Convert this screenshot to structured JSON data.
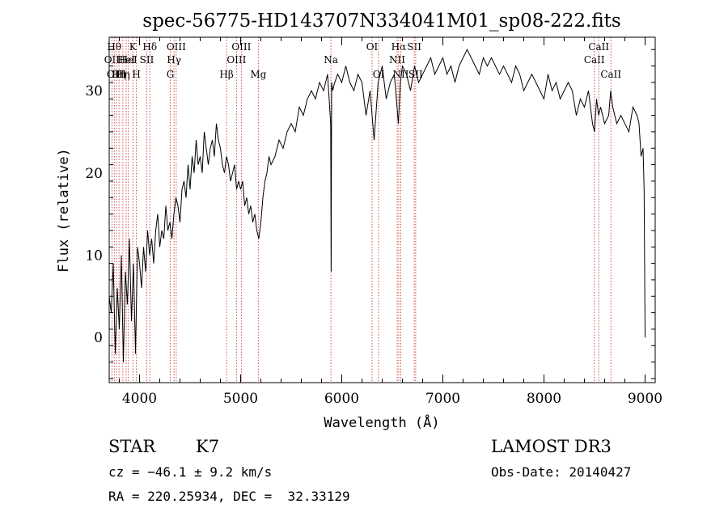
{
  "chart_data": {
    "type": "line",
    "title": "spec-56775-HD143707N334041M01_sp08-222.fits",
    "xlabel": "Wavelength (Å)",
    "ylabel": "Flux (relative)",
    "xlim": [
      3700,
      9100
    ],
    "ylim": [
      -5.5,
      36.5
    ],
    "xticks": [
      4000,
      5000,
      6000,
      7000,
      8000,
      9000
    ],
    "yticks": [
      0,
      10,
      20,
      30
    ],
    "grid": false,
    "series": [
      {
        "x": [
          3700,
          3720,
          3740,
          3760,
          3780,
          3800,
          3820,
          3840,
          3860,
          3880,
          3900,
          3920,
          3940,
          3960,
          3980,
          4000,
          4020,
          4040,
          4060,
          4080,
          4100,
          4120,
          4140,
          4160,
          4180,
          4200,
          4220,
          4240,
          4260,
          4280,
          4300,
          4320,
          4340,
          4360,
          4380,
          4400,
          4420,
          4440,
          4460,
          4480,
          4500,
          4520,
          4540,
          4560,
          4580,
          4600,
          4620,
          4640,
          4660,
          4680,
          4700,
          4720,
          4740,
          4760,
          4780,
          4800,
          4820,
          4840,
          4860,
          4880,
          4900,
          4920,
          4940,
          4960,
          4980,
          5000,
          5020,
          5040,
          5060,
          5080,
          5100,
          5120,
          5140,
          5160,
          5180,
          5200,
          5220,
          5240,
          5260,
          5280,
          5300,
          5340,
          5380,
          5420,
          5460,
          5500,
          5540,
          5580,
          5620,
          5660,
          5700,
          5740,
          5780,
          5820,
          5860,
          5890,
          5895,
          5900,
          5910,
          5930,
          5960,
          6000,
          6040,
          6080,
          6120,
          6160,
          6200,
          6240,
          6280,
          6320,
          6360,
          6400,
          6440,
          6480,
          6520,
          6560,
          6580,
          6600,
          6640,
          6680,
          6720,
          6760,
          6800,
          6840,
          6880,
          6920,
          6960,
          7000,
          7040,
          7080,
          7120,
          7160,
          7200,
          7240,
          7280,
          7320,
          7360,
          7400,
          7440,
          7480,
          7520,
          7560,
          7600,
          7640,
          7680,
          7720,
          7760,
          7800,
          7840,
          7880,
          7920,
          7960,
          8000,
          8040,
          8080,
          8120,
          8160,
          8200,
          8240,
          8280,
          8320,
          8360,
          8400,
          8440,
          8480,
          8500,
          8520,
          8540,
          8560,
          8600,
          8640,
          8660,
          8680,
          8720,
          8760,
          8800,
          8840,
          8880,
          8920,
          8940,
          8960,
          8980,
          8990,
          9000
        ],
        "values": [
          5,
          3,
          9,
          -2,
          6,
          1,
          10,
          -3,
          8,
          4,
          12,
          2,
          9,
          -2,
          11,
          9,
          6,
          11,
          8,
          13,
          10,
          12,
          9,
          13,
          15,
          11,
          13,
          12,
          16,
          13,
          14,
          12,
          15,
          17,
          16,
          14,
          18,
          19,
          17,
          21,
          18,
          22,
          20,
          24,
          21,
          22,
          20,
          25,
          23,
          21,
          23,
          24,
          22,
          26,
          24,
          23,
          21,
          20,
          22,
          21,
          19,
          20,
          21,
          18,
          19,
          18,
          19,
          16,
          17,
          15,
          16,
          14,
          15,
          13,
          12,
          14,
          17,
          19,
          20,
          22,
          21,
          22,
          24,
          23,
          25,
          26,
          25,
          28,
          27,
          29,
          30,
          29,
          31,
          30,
          32,
          26,
          8,
          31,
          30,
          31,
          32,
          31,
          33,
          31,
          30,
          32,
          31,
          27,
          30,
          24,
          31,
          33,
          29,
          31,
          32,
          26,
          31,
          33,
          32,
          30,
          33,
          31,
          32,
          33,
          34,
          32,
          33,
          34,
          32,
          33,
          31,
          33,
          34,
          35,
          34,
          33,
          32,
          34,
          33,
          34,
          33,
          32,
          33,
          32,
          31,
          33,
          32,
          30,
          31,
          32,
          31,
          30,
          29,
          32,
          30,
          31,
          29,
          30,
          31,
          30,
          27,
          29,
          28,
          30,
          26,
          25,
          29,
          27,
          28,
          26,
          27,
          30,
          28,
          26,
          27,
          26,
          25,
          28,
          27,
          26,
          22,
          23,
          18,
          0
        ]
      }
    ],
    "line_markers": [
      {
        "wavelength": 3727,
        "label": "OII",
        "row": 1
      },
      {
        "wavelength": 3750,
        "label": "Hθ",
        "row": 0
      },
      {
        "wavelength": 3771,
        "label": "OIII",
        "row": 2
      },
      {
        "wavelength": 3797,
        "label": "Hη",
        "row": 2
      },
      {
        "wavelength": 3835,
        "label": "Hη",
        "row": 2
      },
      {
        "wavelength": 3868,
        "label": "HeI",
        "row": 1
      },
      {
        "wavelength": 3889,
        "label": "HeI",
        "row": 1
      },
      {
        "wavelength": 3934,
        "label": "K",
        "row": 0
      },
      {
        "wavelength": 3969,
        "label": "H",
        "row": 2
      },
      {
        "wavelength": 4072,
        "label": "SII",
        "row": 1
      },
      {
        "wavelength": 4102,
        "label": "Hδ",
        "row": 0
      },
      {
        "wavelength": 4304,
        "label": "G",
        "row": 2
      },
      {
        "wavelength": 4341,
        "label": "Hγ",
        "row": 1
      },
      {
        "wavelength": 4363,
        "label": "OIII",
        "row": 0
      },
      {
        "wavelength": 4861,
        "label": "Hβ",
        "row": 2
      },
      {
        "wavelength": 4959,
        "label": "OIII",
        "row": 1
      },
      {
        "wavelength": 5007,
        "label": "OIII",
        "row": 0
      },
      {
        "wavelength": 5175,
        "label": "Mg",
        "row": 2
      },
      {
        "wavelength": 5893,
        "label": "Na",
        "row": 1
      },
      {
        "wavelength": 6300,
        "label": "OI",
        "row": 0
      },
      {
        "wavelength": 6364,
        "label": "OI",
        "row": 2
      },
      {
        "wavelength": 6548,
        "label": "NII",
        "row": 1
      },
      {
        "wavelength": 6563,
        "label": "Hα",
        "row": 0
      },
      {
        "wavelength": 6584,
        "label": "NII",
        "row": 2
      },
      {
        "wavelength": 6717,
        "label": "SII",
        "row": 0
      },
      {
        "wavelength": 6731,
        "label": "SII",
        "row": 2
      },
      {
        "wavelength": 8498,
        "label": "CaII",
        "row": 1
      },
      {
        "wavelength": 8542,
        "label": "CaII",
        "row": 0
      },
      {
        "wavelength": 8662,
        "label": "CaII",
        "row": 2
      }
    ]
  },
  "info": {
    "object_class": "STAR",
    "subclass": "K7",
    "survey": "LAMOST DR3",
    "redshift_text": "cz = −46.1 ± 9.2 km/s",
    "obs_date_text": "Obs-Date: 20140427",
    "coords_text": "RA = 220.25934, DEC =  32.33129"
  }
}
